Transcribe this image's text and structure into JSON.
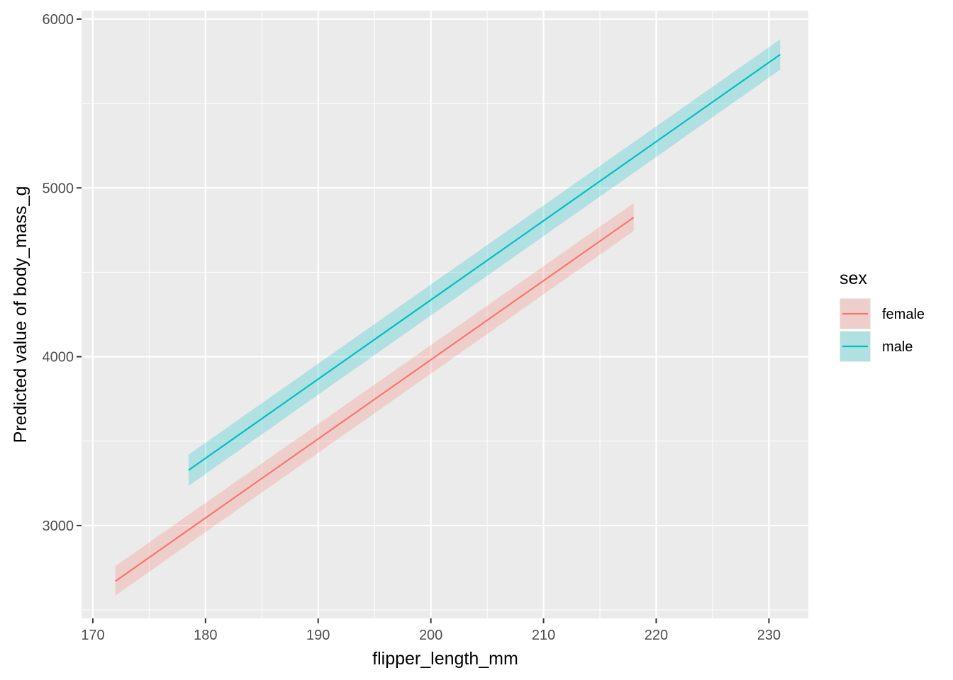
{
  "chart_data": {
    "type": "line",
    "title": "",
    "xlabel": "flipper_length_mm",
    "ylabel": "Predicted value of body_mass_g",
    "xlim": [
      169,
      233.5
    ],
    "ylim": [
      2450,
      6050
    ],
    "x_ticks": [
      170,
      180,
      190,
      200,
      210,
      220,
      230
    ],
    "y_ticks": [
      3000,
      4000,
      5000,
      6000
    ],
    "grid": true,
    "legend": {
      "title": "sex",
      "placement": "right"
    },
    "series": [
      {
        "name": "female",
        "color": "#F8766D",
        "x": [
          172,
          218
        ],
        "y": [
          2670,
          4825
        ],
        "ci_lower": [
          2585,
          4745
        ],
        "ci_upper": [
          2760,
          4910
        ]
      },
      {
        "name": "male",
        "color": "#00BFC4",
        "x": [
          178.5,
          231
        ],
        "y": [
          3328,
          5790
        ],
        "ci_lower": [
          3235,
          5700
        ],
        "ci_upper": [
          3420,
          5880
        ]
      }
    ]
  }
}
